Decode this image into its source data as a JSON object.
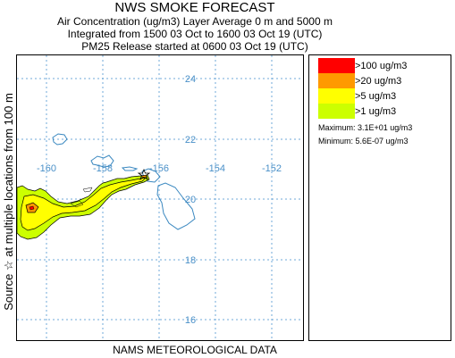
{
  "header": {
    "title": "NWS SMOKE FORECAST",
    "line1": "Air Concentration (ug/m3) Layer Average     0 m and  5000 m",
    "line2": "Integrated from 1500 03 Oct to 1600 03 Oct 19 (UTC)",
    "line3": "PM25 Release started at 0600 03 Oct 19 (UTC)"
  },
  "side_label": "Source ☆     at multiple locations     from  100 m",
  "footer": "NAMS METEOROLOGICAL DATA",
  "map": {
    "lat_labels": [
      "24",
      "22",
      "20",
      "18",
      "16"
    ],
    "lon_labels": [
      "-160",
      "-158",
      "-156",
      "-154",
      "-152"
    ],
    "grid_color": "#6fa8d8",
    "coast_color": "#3a88c0"
  },
  "legend": {
    "items": [
      {
        "label": ">100 ug/m3",
        "color": "#ff0000"
      },
      {
        "label": ">20 ug/m3",
        "color": "#ff9900"
      },
      {
        "label": ">5 ug/m3",
        "color": "#ffff00"
      },
      {
        "label": ">1 ug/m3",
        "color": "#ccff00"
      }
    ],
    "maximum": "Maximum: 3.1E+01 ug/m3",
    "minimum": "Minimum: 5.6E-07 ug/m3"
  }
}
